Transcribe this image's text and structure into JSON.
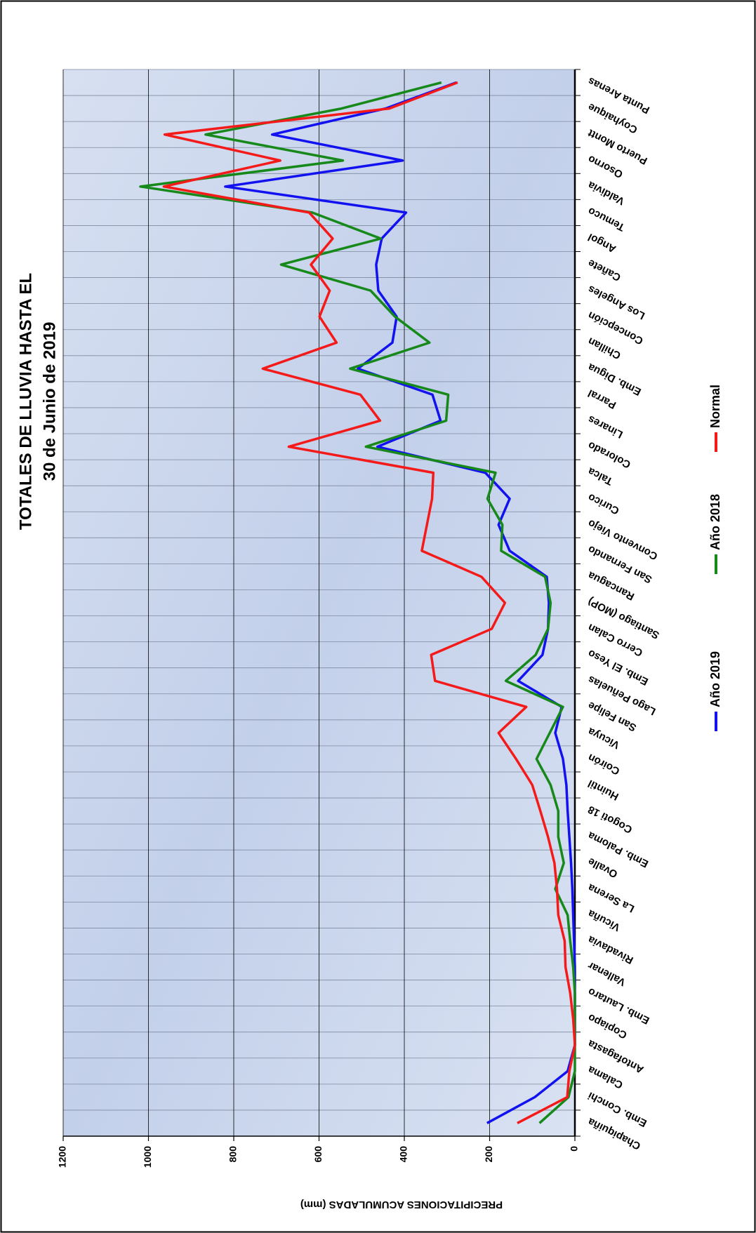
{
  "chart_data": {
    "type": "line",
    "title": "TOTALES DE LLUVIA HASTA EL",
    "subtitle": "30 de Junio de 2019",
    "y_label": "PRECIPITACIONES ACUMULADAS (mm)",
    "categories": [
      "Chapiquiña",
      "Emb. Conchi",
      "Calama",
      "Antofagasta",
      "Copiapo",
      "Emb. Lautaro",
      "Vallenar",
      "Rivadavia",
      "Vicuña",
      "La Serena",
      "Ovalle",
      "Emb. Paloma",
      "Cogoti 18",
      "Huintil",
      "Coirón",
      "Vicuya",
      "San Felipe",
      "Lago Peñuelas",
      "Emb. El Yeso",
      "Cerro Calan",
      "Santiago (MOP)",
      "Rancagua",
      "San Fernando",
      "Convento Viejo",
      "Curico",
      "Talca",
      "Colorado",
      "Linares",
      "Parral",
      "Emb. Digua",
      "Chillan",
      "Concepción",
      "Los Angeles",
      "Cañete",
      "Angol",
      "Temuco",
      "Valdivia",
      "Osorno",
      "Puerto Montt",
      "Coyhaique",
      "Punta Arenas"
    ],
    "series": [
      {
        "name": "Año 2019",
        "color": "#1212f0",
        "values": [
          206,
          94,
          17,
          0,
          0,
          0,
          0,
          2,
          4,
          6,
          9,
          13,
          17,
          20,
          28,
          46,
          31,
          133,
          76,
          63,
          61,
          66,
          153,
          179,
          153,
          210,
          463,
          315,
          334,
          509,
          428,
          418,
          461,
          466,
          453,
          396,
          820,
          404,
          710,
          444,
          278
        ]
      },
      {
        "name": "Año 2018",
        "color": "#16891a",
        "values": [
          83,
          15,
          0,
          0,
          0,
          0,
          4,
          11,
          17,
          46,
          26,
          39,
          39,
          57,
          90,
          59,
          28,
          162,
          92,
          63,
          57,
          70,
          173,
          170,
          205,
          186,
          490,
          302,
          297,
          527,
          341,
          422,
          479,
          689,
          455,
          616,
          1019,
          544,
          866,
          547,
          313
        ]
      },
      {
        "name": "Normal",
        "color": "#f51a1a",
        "values": [
          135,
          18,
          13,
          0,
          4,
          11,
          22,
          24,
          39,
          42,
          48,
          63,
          81,
          100,
          138,
          179,
          114,
          328,
          337,
          195,
          164,
          219,
          359,
          347,
          335,
          332,
          671,
          457,
          503,
          732,
          559,
          599,
          575,
          619,
          568,
          623,
          964,
          691,
          962,
          435,
          275
        ]
      }
    ],
    "ylim": [
      0,
      1200
    ],
    "yticks": [
      0,
      200,
      400,
      600,
      800,
      1000,
      1200
    ],
    "grid": true
  }
}
